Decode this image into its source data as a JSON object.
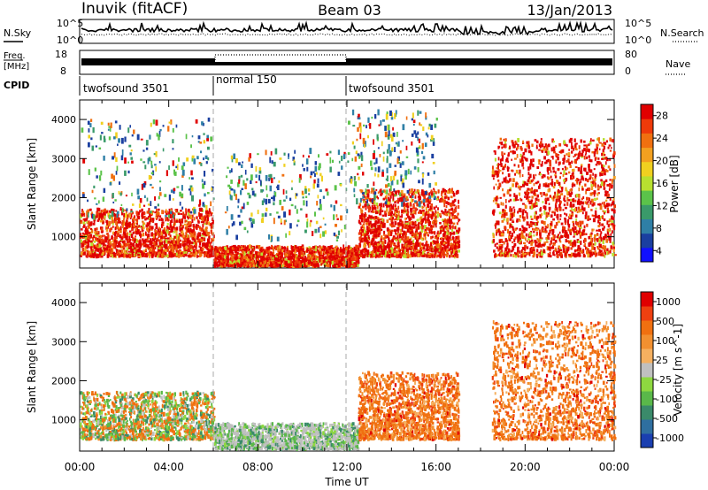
{
  "header": {
    "station": "Inuvik (fitACF)",
    "beam": "Beam 03",
    "date": "13/Jan/2013"
  },
  "top_panels": {
    "nsky": {
      "left_label": "N.Sky",
      "left_tick_top": "10^5",
      "left_tick_bottom": "10^0",
      "right_tick_top": "10^5",
      "right_tick_bottom": "10^0",
      "right_label": "N.Search"
    },
    "freq": {
      "left_label_1": "Freq.",
      "left_label_2": "[MHz]",
      "left_tick_top": "18",
      "left_tick_bottom": "8",
      "right_tick_top": "80",
      "right_tick_bottom": "0",
      "right_label": "Nave"
    },
    "cpid": {
      "label": "CPID",
      "segments": [
        {
          "name": "twofsound 3501",
          "start_hr": 0,
          "end_hr": 6
        },
        {
          "name": "normal 150",
          "start_hr": 6,
          "end_hr": 12
        },
        {
          "name": "twofsound 3501",
          "start_hr": 12,
          "end_hr": 24
        }
      ]
    }
  },
  "chart_data": [
    {
      "type": "heatmap",
      "title": "",
      "xlabel": "Time UT",
      "ylabel": "Slant Range [km]",
      "xlim": [
        0,
        24
      ],
      "ylim": [
        200,
        4500
      ],
      "x_tick_labels": [
        "00:00",
        "04:00",
        "08:00",
        "12:00",
        "16:00",
        "20:00",
        "00:00"
      ],
      "y_tick_labels": [
        "1000",
        "2000",
        "3000",
        "4000"
      ],
      "colorbar": {
        "label": "Power [dB]",
        "tick_labels": [
          "4",
          "8",
          "12",
          "16",
          "20",
          "24",
          "28"
        ],
        "colors": [
          "#1010ff",
          "#1a3fa0",
          "#2f7fa6",
          "#3a9a6a",
          "#5bc34a",
          "#b8e030",
          "#f0d020",
          "#f2a020",
          "#f07010",
          "#ee3a0a",
          "#e00000"
        ]
      },
      "regions": [
        {
          "t_start": 0.0,
          "t_end": 6.0,
          "r_low": 500,
          "r_high": 1700,
          "level": "high"
        },
        {
          "t_start": 6.0,
          "t_end": 12.5,
          "r_low": 250,
          "r_high": 750,
          "level": "high"
        },
        {
          "t_start": 12.5,
          "t_end": 17.0,
          "r_low": 500,
          "r_high": 2200,
          "level": "high"
        },
        {
          "t_start": 18.5,
          "t_end": 24.0,
          "r_low": 500,
          "r_high": 3500,
          "level": "high"
        },
        {
          "t_start": 0.0,
          "t_end": 6.0,
          "r_low": 1500,
          "r_high": 4000,
          "level": "scattered"
        },
        {
          "t_start": 6.5,
          "t_end": 12.0,
          "r_low": 900,
          "r_high": 3200,
          "level": "scattered"
        },
        {
          "t_start": 12.0,
          "t_end": 16.0,
          "r_low": 1800,
          "r_high": 4200,
          "level": "scattered"
        }
      ]
    },
    {
      "type": "heatmap",
      "title": "",
      "xlabel": "Time UT",
      "ylabel": "Slant Range [km]",
      "xlim": [
        0,
        24
      ],
      "ylim": [
        200,
        4500
      ],
      "x_tick_labels": [
        "00:00",
        "04:00",
        "08:00",
        "12:00",
        "16:00",
        "20:00",
        "00:00"
      ],
      "y_tick_labels": [
        "1000",
        "2000",
        "3000",
        "4000"
      ],
      "colorbar": {
        "label": "Velocity [m s^-1]",
        "tick_labels": [
          "1000",
          "500",
          "100",
          "25",
          "-25",
          "-100",
          "-500",
          "-1000"
        ],
        "colors": [
          "#1a3fb0",
          "#2f6fa0",
          "#3a8a6a",
          "#5ab84a",
          "#8ed840",
          "#c0c0c0",
          "#f5b060",
          "#f29030",
          "#f07010",
          "#ee4010",
          "#e00000"
        ]
      },
      "regions": [
        {
          "t_start": 0.0,
          "t_end": 6.0,
          "r_low": 500,
          "r_high": 1700,
          "sign": "mixed"
        },
        {
          "t_start": 6.0,
          "t_end": 12.5,
          "r_low": 250,
          "r_high": 900,
          "sign": "ground"
        },
        {
          "t_start": 12.5,
          "t_end": 17.0,
          "r_low": 500,
          "r_high": 2200,
          "sign": "away"
        },
        {
          "t_start": 18.5,
          "t_end": 24.0,
          "r_low": 500,
          "r_high": 3500,
          "sign": "away"
        }
      ]
    }
  ]
}
